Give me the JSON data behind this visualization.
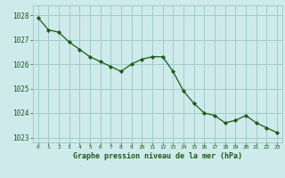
{
  "x": [
    0,
    1,
    2,
    3,
    4,
    5,
    6,
    7,
    8,
    9,
    10,
    11,
    12,
    13,
    14,
    15,
    16,
    17,
    18,
    19,
    20,
    21,
    22,
    23
  ],
  "y": [
    1027.9,
    1027.4,
    1027.3,
    1026.9,
    1026.6,
    1026.3,
    1026.1,
    1025.9,
    1025.7,
    1026.0,
    1026.2,
    1026.3,
    1026.3,
    1025.7,
    1024.9,
    1024.4,
    1024.0,
    1023.9,
    1023.6,
    1023.7,
    1023.9,
    1023.6,
    1023.4,
    1023.2
  ],
  "ylim": [
    1022.8,
    1028.4
  ],
  "yticks": [
    1023,
    1024,
    1025,
    1026,
    1027,
    1028
  ],
  "xticks": [
    0,
    1,
    2,
    3,
    4,
    5,
    6,
    7,
    8,
    9,
    10,
    11,
    12,
    13,
    14,
    15,
    16,
    17,
    18,
    19,
    20,
    21,
    22,
    23
  ],
  "line_color": "#1a5c1a",
  "marker_color": "#1a5c1a",
  "bg_color": "#ceeaea",
  "grid_color": "#a0cccc",
  "xlabel": "Graphe pression niveau de la mer (hPa)",
  "tick_label_color": "#1a5c1a",
  "bottom_bar_color": "#ceeaea",
  "bottom_text_color": "#1a5c1a",
  "figsize": [
    3.2,
    2.0
  ],
  "dpi": 100
}
